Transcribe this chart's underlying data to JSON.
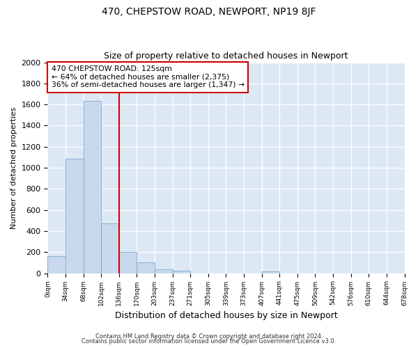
{
  "title": "470, CHEPSTOW ROAD, NEWPORT, NP19 8JF",
  "subtitle": "Size of property relative to detached houses in Newport",
  "xlabel": "Distribution of detached houses by size in Newport",
  "ylabel": "Number of detached properties",
  "annotation_line1": "470 CHEPSTOW ROAD: 125sqm",
  "annotation_line2": "← 64% of detached houses are smaller (2,375)",
  "annotation_line3": "36% of semi-detached houses are larger (1,347) →",
  "bar_color": "#c8d9ee",
  "bar_edge_color": "#7aa8cc",
  "line_color": "#cc0000",
  "bg_color": "#dde8f5",
  "ylim": [
    0,
    2000
  ],
  "yticks": [
    0,
    200,
    400,
    600,
    800,
    1000,
    1200,
    1400,
    1600,
    1800,
    2000
  ],
  "categories": [
    "0sqm",
    "34sqm",
    "68sqm",
    "102sqm",
    "136sqm",
    "170sqm",
    "203sqm",
    "237sqm",
    "271sqm",
    "305sqm",
    "339sqm",
    "373sqm",
    "407sqm",
    "441sqm",
    "475sqm",
    "509sqm",
    "542sqm",
    "576sqm",
    "610sqm",
    "644sqm",
    "678sqm"
  ],
  "bar_values": [
    165,
    1085,
    1635,
    470,
    200,
    100,
    37,
    24,
    0,
    0,
    0,
    0,
    15,
    0,
    0,
    0,
    0,
    0,
    0,
    0
  ],
  "n_bars": 20,
  "red_line_x": 4,
  "footnote1": "Contains HM Land Registry data © Crown copyright and database right 2024.",
  "footnote2": "Contains public sector information licensed under the Open Government Licence v3.0."
}
